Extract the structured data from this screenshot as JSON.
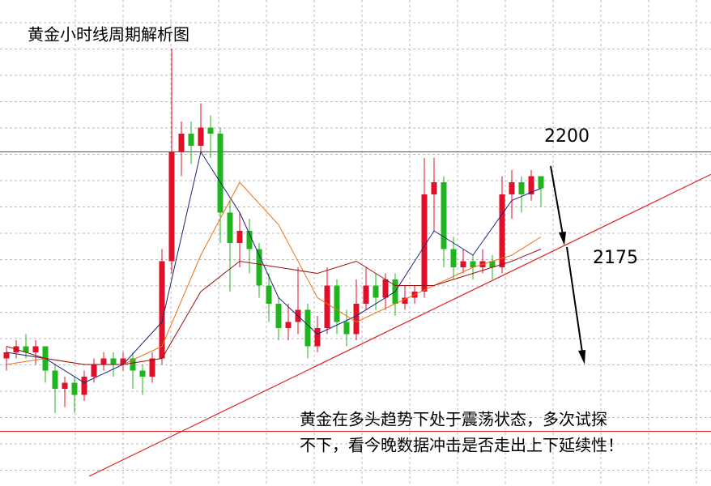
{
  "chart_data": {
    "type": "candlestick",
    "title": "黄金小时线周期解析图",
    "annotation": [
      "黄金在多头趋势下处于震荡状态，多次试探",
      "不下，看今晚数据冲击是否走出上下延续性！"
    ],
    "ylim": [
      2145,
      2225
    ],
    "up_color": "#e0102a",
    "down_color": "#1fb51f",
    "levels": [
      2200,
      2154
    ],
    "level_color": "#e02020",
    "target": 2175,
    "trendline": {
      "color": "#e02020",
      "x": [
        8.5,
        72.5
      ],
      "values": [
        2146.6,
        2196.3
      ]
    },
    "candles": [
      [
        2166,
        2168,
        2164,
        2167
      ],
      [
        2167,
        2169,
        2166,
        2168
      ],
      [
        2168,
        2170,
        2166,
        2167
      ],
      [
        2167,
        2169,
        2165,
        2168
      ],
      [
        2168,
        2168,
        2162,
        2164
      ],
      [
        2164,
        2165,
        2157,
        2161
      ],
      [
        2161,
        2163,
        2158,
        2162
      ],
      [
        2162,
        2163,
        2157,
        2160
      ],
      [
        2160,
        2164,
        2159,
        2163
      ],
      [
        2163,
        2166,
        2162,
        2165
      ],
      [
        2165,
        2167,
        2164,
        2166
      ],
      [
        2166,
        2167,
        2163,
        2165
      ],
      [
        2165,
        2167,
        2164,
        2166
      ],
      [
        2166,
        2167,
        2161,
        2164
      ],
      [
        2164,
        2165,
        2160,
        2163
      ],
      [
        2163,
        2167,
        2162,
        2166
      ],
      [
        2166,
        2184,
        2165,
        2182
      ],
      [
        2182,
        2217,
        2180,
        2200
      ],
      [
        2200,
        2205,
        2196,
        2203
      ],
      [
        2203,
        2205,
        2198,
        2201
      ],
      [
        2201,
        2208,
        2200,
        2204
      ],
      [
        2204,
        2206,
        2199,
        2203
      ],
      [
        2203,
        2204,
        2185,
        2190
      ],
      [
        2190,
        2192,
        2177,
        2185
      ],
      [
        2185,
        2190,
        2181,
        2187
      ],
      [
        2187,
        2189,
        2180,
        2184
      ],
      [
        2184,
        2185,
        2176,
        2178
      ],
      [
        2178,
        2180,
        2172,
        2175
      ],
      [
        2175,
        2176,
        2169,
        2171
      ],
      [
        2171,
        2175,
        2169,
        2172
      ],
      [
        2172,
        2181,
        2170,
        2174
      ],
      [
        2174,
        2175,
        2166,
        2168
      ],
      [
        2168,
        2173,
        2167,
        2171
      ],
      [
        2171,
        2181,
        2170,
        2178
      ],
      [
        2178,
        2179,
        2170,
        2172
      ],
      [
        2172,
        2174,
        2168,
        2170
      ],
      [
        2170,
        2179,
        2169,
        2175
      ],
      [
        2175,
        2181,
        2174,
        2178
      ],
      [
        2178,
        2180,
        2174,
        2176
      ],
      [
        2176,
        2180,
        2174,
        2179
      ],
      [
        2179,
        2180,
        2173,
        2175
      ],
      [
        2175,
        2178,
        2174,
        2176
      ],
      [
        2176,
        2178,
        2175,
        2177
      ],
      [
        2177,
        2199,
        2176,
        2193
      ],
      [
        2193,
        2199,
        2187,
        2195
      ],
      [
        2195,
        2196,
        2181,
        2184
      ],
      [
        2184,
        2186,
        2179,
        2181
      ],
      [
        2181,
        2184,
        2180,
        2182
      ],
      [
        2182,
        2183,
        2179,
        2181
      ],
      [
        2181,
        2184,
        2180,
        2182
      ],
      [
        2182,
        2183,
        2179,
        2181
      ],
      [
        2181,
        2196,
        2180,
        2193
      ],
      [
        2193,
        2197,
        2189,
        2195
      ],
      [
        2195,
        2196,
        2190,
        2193
      ],
      [
        2193,
        2197,
        2192,
        2196
      ],
      [
        2196,
        2196,
        2191,
        2194
      ]
    ],
    "ma": [
      {
        "color": "#1a237e",
        "x": [
          0,
          4,
          8,
          12,
          16,
          20,
          24,
          28,
          32,
          36,
          40,
          44,
          48,
          52,
          55
        ],
        "values": [
          2167,
          2166,
          2162,
          2165,
          2172,
          2200,
          2190,
          2176,
          2170,
          2173,
          2177,
          2187,
          2183,
          2192,
          2194
        ]
      },
      {
        "color": "#f07010",
        "x": [
          0,
          4,
          8,
          12,
          16,
          20,
          24,
          28,
          32,
          36,
          40,
          44,
          48,
          52,
          55
        ],
        "values": [
          2165,
          2166,
          2165,
          2165,
          2168,
          2183,
          2195,
          2188,
          2176,
          2172,
          2175,
          2178,
          2181,
          2183,
          2186
        ]
      },
      {
        "color": "#a01010",
        "x": [
          0,
          4,
          8,
          12,
          16,
          20,
          24,
          28,
          32,
          36,
          40,
          44,
          48,
          52,
          55
        ],
        "values": [
          2168,
          2166,
          2165,
          2165,
          2166,
          2177,
          2182,
          2181,
          2180,
          2182,
          2178,
          2178,
          2180,
          2182,
          2184
        ]
      }
    ]
  }
}
